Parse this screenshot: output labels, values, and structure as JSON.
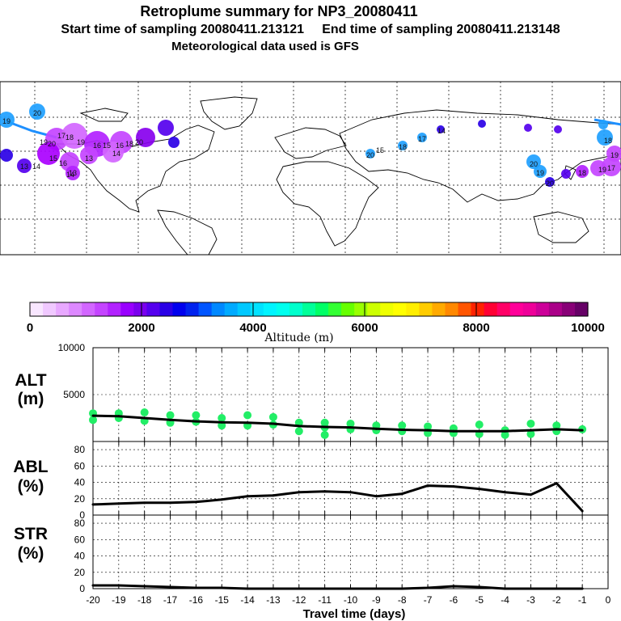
{
  "header": {
    "title": "Retroplume summary for NP3_20080411",
    "sampling_line": "Start time of sampling 20080411.213121     End time of sampling 20080411.213148",
    "met_line": "Meteorological data used is GFS"
  },
  "map_labels": [
    "19",
    "20",
    "18",
    "20",
    "19",
    "18",
    "19",
    "17",
    "19",
    "20",
    "14",
    "13",
    "16",
    "15",
    "14",
    "13",
    "20",
    "18",
    "17",
    "14",
    "15",
    "16",
    "18",
    "20",
    "19",
    "18",
    "17",
    "20",
    "19",
    "16",
    "15",
    "14",
    "13"
  ],
  "colorbar": {
    "title": "Altitude (m)",
    "tick_labels": [
      "0",
      "2000",
      "4000",
      "6000",
      "8000",
      "10000"
    ],
    "colors": [
      "#f8e6ff",
      "#f0c8ff",
      "#e8a8ff",
      "#dd88ff",
      "#d266ff",
      "#c444ff",
      "#b222ff",
      "#9900ff",
      "#7a00ee",
      "#5500ee",
      "#2a00e6",
      "#0000ee",
      "#0022ee",
      "#0055ff",
      "#0088ff",
      "#00aaff",
      "#00c8ff",
      "#00e2ff",
      "#00f4ff",
      "#00ffee",
      "#00ffcc",
      "#00ff99",
      "#00ff66",
      "#33ff33",
      "#66ff00",
      "#99ff00",
      "#ccff00",
      "#eeff00",
      "#ffff00",
      "#ffee00",
      "#ffcc00",
      "#ffaa00",
      "#ff8800",
      "#ff5500",
      "#ff2200",
      "#ff0033",
      "#ff0066",
      "#ff0099",
      "#ee0099",
      "#cc0099",
      "#aa0088",
      "#880077",
      "#660066"
    ]
  },
  "chart_data": [
    {
      "type": "line",
      "name": "ALT",
      "ylabel": "ALT",
      "yunit": "(m)",
      "xlabel": "Travel time (days)",
      "xlim": [
        -20,
        0
      ],
      "ylim": [
        0,
        10000
      ],
      "y_ticks": [
        5000,
        10000
      ],
      "y_tick_labels": [
        "5000",
        "10000"
      ],
      "x": [
        -20,
        -19,
        -18,
        -17,
        -16,
        -15,
        -14,
        -13,
        -12,
        -11,
        -10,
        -9,
        -8,
        -7,
        -6,
        -5,
        -4,
        -3,
        -2,
        -1
      ],
      "values": [
        2750,
        2700,
        2500,
        2300,
        2150,
        2050,
        2000,
        1900,
        1650,
        1550,
        1500,
        1350,
        1250,
        1200,
        1100,
        1100,
        1100,
        1200,
        1300,
        1200
      ],
      "scatter_color": "#22ee66",
      "scatter_points": [
        [
          -20,
          3000
        ],
        [
          -20,
          2300
        ],
        [
          -19,
          3000
        ],
        [
          -19,
          2500
        ],
        [
          -18,
          3100
        ],
        [
          -18,
          2200
        ],
        [
          -17,
          2800
        ],
        [
          -17,
          2000
        ],
        [
          -16,
          2800
        ],
        [
          -16,
          2100
        ],
        [
          -15,
          2500
        ],
        [
          -15,
          1700
        ],
        [
          -14,
          2800
        ],
        [
          -14,
          1700
        ],
        [
          -13,
          2600
        ],
        [
          -13,
          1800
        ],
        [
          -12,
          2000
        ],
        [
          -12,
          1100
        ],
        [
          -11,
          2000
        ],
        [
          -11,
          1500
        ],
        [
          -11,
          700
        ],
        [
          -10,
          1900
        ],
        [
          -10,
          1300
        ],
        [
          -9,
          1700
        ],
        [
          -9,
          1200
        ],
        [
          -8,
          1700
        ],
        [
          -8,
          1100
        ],
        [
          -7,
          1600
        ],
        [
          -7,
          900
        ],
        [
          -6,
          1400
        ],
        [
          -6,
          900
        ],
        [
          -5,
          1800
        ],
        [
          -5,
          800
        ],
        [
          -4,
          1200
        ],
        [
          -4,
          700
        ],
        [
          -3,
          1900
        ],
        [
          -3,
          800
        ],
        [
          -2,
          1700
        ],
        [
          -2,
          1100
        ],
        [
          -1,
          1300
        ]
      ]
    },
    {
      "type": "line",
      "name": "ABL",
      "ylabel": "ABL",
      "yunit": "(%)",
      "xlim": [
        -20,
        0
      ],
      "ylim": [
        0,
        90
      ],
      "y_ticks": [
        0,
        20,
        40,
        60,
        80
      ],
      "y_tick_labels": [
        "0",
        "20",
        "40",
        "60",
        "80"
      ],
      "x": [
        -20,
        -19,
        -18,
        -17,
        -16,
        -15,
        -14,
        -13,
        -12,
        -11,
        -10,
        -9,
        -8,
        -7,
        -6,
        -5,
        -4,
        -3,
        -2,
        -1
      ],
      "values": [
        13,
        14,
        15,
        15,
        16,
        19,
        23,
        24,
        28,
        29,
        28,
        23,
        26,
        36,
        35,
        32,
        28,
        25,
        39,
        5
      ]
    },
    {
      "type": "line",
      "name": "STR",
      "ylabel": "STR",
      "yunit": "(%)",
      "xlabel": "Travel time (days)",
      "xlim": [
        -20,
        0
      ],
      "ylim": [
        0,
        90
      ],
      "y_ticks": [
        0,
        20,
        40,
        60,
        80
      ],
      "y_tick_labels": [
        "0",
        "20",
        "40",
        "60",
        "80"
      ],
      "x": [
        -20,
        -19,
        -18,
        -17,
        -16,
        -15,
        -14,
        -13,
        -12,
        -11,
        -10,
        -9,
        -8,
        -7,
        -6,
        -5,
        -4,
        -3,
        -2,
        -1
      ],
      "x_tick_labels": [
        "-20",
        "-19",
        "-18",
        "-17",
        "-16",
        "-15",
        "-14",
        "-13",
        "-12",
        "-11",
        "-10",
        "-9",
        "-8",
        "-7",
        "-6",
        "-5",
        "-4",
        "-3",
        "-2",
        "-1",
        "0"
      ],
      "values": [
        4,
        4,
        3,
        2,
        1,
        1,
        0,
        0,
        0,
        0,
        0,
        0,
        0,
        1,
        3,
        2,
        0,
        0,
        0,
        0
      ]
    }
  ]
}
